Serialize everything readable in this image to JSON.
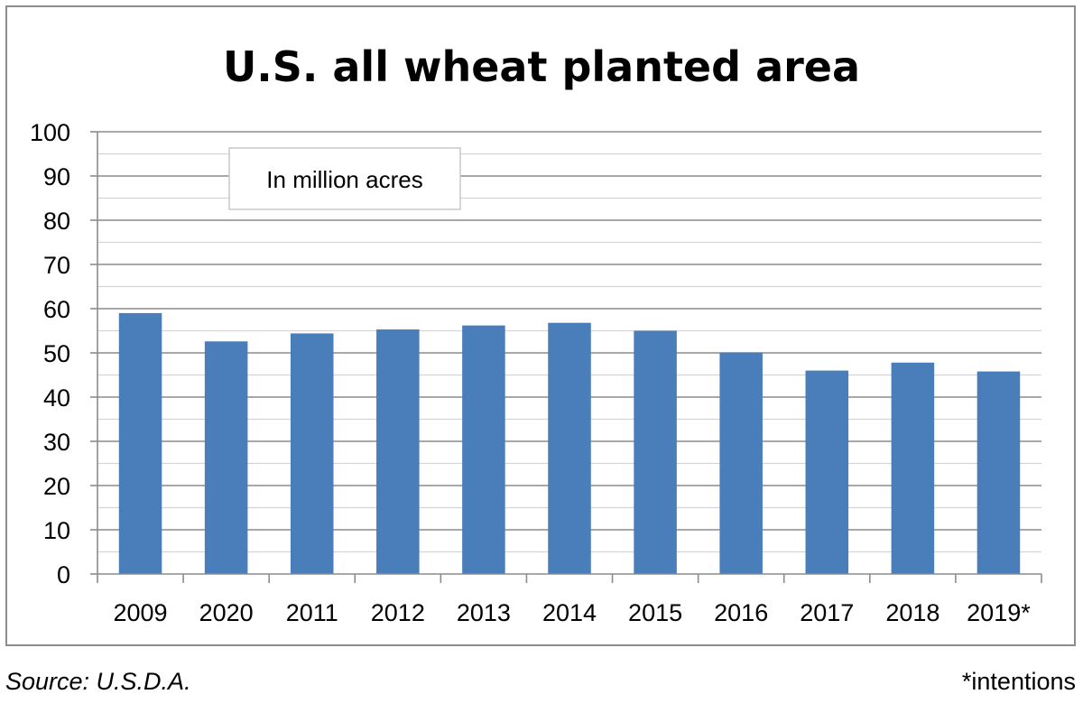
{
  "chart_data": {
    "type": "bar",
    "title": "U.S. all wheat planted area",
    "annotation": "In million acres",
    "categories": [
      "2009",
      "2020",
      "2011",
      "2012",
      "2013",
      "2014",
      "2015",
      "2016",
      "2017",
      "2018",
      "2019*"
    ],
    "values": [
      59.0,
      52.6,
      54.4,
      55.3,
      56.2,
      56.8,
      55.0,
      50.1,
      46.0,
      47.8,
      45.8
    ],
    "ylim": [
      0,
      100
    ],
    "yticks": [
      0,
      10,
      20,
      30,
      40,
      50,
      60,
      70,
      80,
      90,
      100
    ],
    "xlabel": "",
    "ylabel": "",
    "grid": true,
    "bar_color": "#4a7ebb"
  },
  "footer": {
    "source": "Source: U.S.D.A.",
    "footnote": "*intentions"
  }
}
